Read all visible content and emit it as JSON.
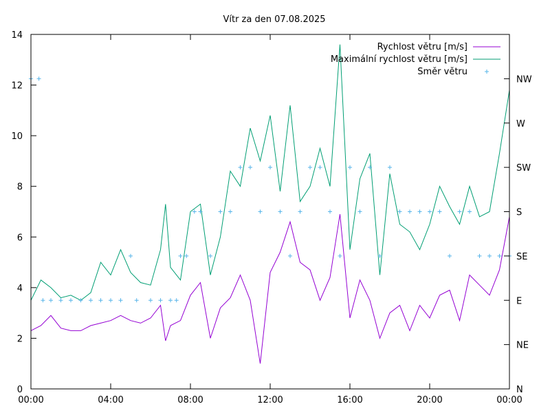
{
  "chart_data": {
    "type": "line",
    "title": "Vítr za den 07.08.2025",
    "x_ticks": [
      "00:00",
      "04:00",
      "08:00",
      "12:00",
      "16:00",
      "20:00",
      "00:00"
    ],
    "x_range_hours": [
      0,
      24
    ],
    "y_left": {
      "range": [
        0,
        14
      ],
      "ticks": [
        "0",
        "2",
        "4",
        "6",
        "8",
        "10",
        "12",
        "14"
      ]
    },
    "y_right": {
      "ticks": [
        "N",
        "NE",
        "E",
        "SE",
        "S",
        "SW",
        "W",
        "NW"
      ]
    },
    "grid": false,
    "legend_position": "top-right",
    "series": [
      {
        "name": "Rychlost větru [m/s]",
        "color": "#9400d3",
        "style": "line",
        "axis": "left",
        "points": [
          [
            0.0,
            2.3
          ],
          [
            0.5,
            2.5
          ],
          [
            1.0,
            2.9
          ],
          [
            1.5,
            2.4
          ],
          [
            2.0,
            2.3
          ],
          [
            2.5,
            2.3
          ],
          [
            3.0,
            2.5
          ],
          [
            3.5,
            2.6
          ],
          [
            4.0,
            2.7
          ],
          [
            4.5,
            2.9
          ],
          [
            5.0,
            2.7
          ],
          [
            5.5,
            2.6
          ],
          [
            6.0,
            2.8
          ],
          [
            6.5,
            3.3
          ],
          [
            6.75,
            1.9
          ],
          [
            7.0,
            2.5
          ],
          [
            7.5,
            2.7
          ],
          [
            8.0,
            3.7
          ],
          [
            8.5,
            4.2
          ],
          [
            9.0,
            2.0
          ],
          [
            9.5,
            3.2
          ],
          [
            10.0,
            3.6
          ],
          [
            10.5,
            4.5
          ],
          [
            11.0,
            3.5
          ],
          [
            11.5,
            1.0
          ],
          [
            12.0,
            4.6
          ],
          [
            12.5,
            5.4
          ],
          [
            13.0,
            6.6
          ],
          [
            13.5,
            5.0
          ],
          [
            14.0,
            4.7
          ],
          [
            14.5,
            3.5
          ],
          [
            15.0,
            4.4
          ],
          [
            15.5,
            6.9
          ],
          [
            16.0,
            2.8
          ],
          [
            16.5,
            4.3
          ],
          [
            17.0,
            3.5
          ],
          [
            17.5,
            2.0
          ],
          [
            18.0,
            3.0
          ],
          [
            18.5,
            3.3
          ],
          [
            19.0,
            2.3
          ],
          [
            19.5,
            3.3
          ],
          [
            20.0,
            2.8
          ],
          [
            20.5,
            3.7
          ],
          [
            21.0,
            3.9
          ],
          [
            21.5,
            2.7
          ],
          [
            22.0,
            4.5
          ],
          [
            22.5,
            4.1
          ],
          [
            23.0,
            3.7
          ],
          [
            23.5,
            4.7
          ],
          [
            24.0,
            6.8
          ]
        ]
      },
      {
        "name": "Maximální rychlost větru [m/s]",
        "color": "#009e73",
        "style": "line",
        "axis": "left",
        "points": [
          [
            0.0,
            3.5
          ],
          [
            0.5,
            4.3
          ],
          [
            1.0,
            4.0
          ],
          [
            1.5,
            3.6
          ],
          [
            2.0,
            3.7
          ],
          [
            2.5,
            3.5
          ],
          [
            3.0,
            3.8
          ],
          [
            3.5,
            5.0
          ],
          [
            4.0,
            4.5
          ],
          [
            4.5,
            5.5
          ],
          [
            5.0,
            4.6
          ],
          [
            5.5,
            4.2
          ],
          [
            6.0,
            4.1
          ],
          [
            6.5,
            5.5
          ],
          [
            6.75,
            7.3
          ],
          [
            7.0,
            4.8
          ],
          [
            7.5,
            4.3
          ],
          [
            8.0,
            7.0
          ],
          [
            8.5,
            7.3
          ],
          [
            9.0,
            4.5
          ],
          [
            9.5,
            6.0
          ],
          [
            10.0,
            8.6
          ],
          [
            10.5,
            8.0
          ],
          [
            11.0,
            10.3
          ],
          [
            11.5,
            9.0
          ],
          [
            12.0,
            10.8
          ],
          [
            12.5,
            7.8
          ],
          [
            13.0,
            11.2
          ],
          [
            13.5,
            7.4
          ],
          [
            14.0,
            8.0
          ],
          [
            14.5,
            9.5
          ],
          [
            15.0,
            8.0
          ],
          [
            15.5,
            13.6
          ],
          [
            16.0,
            5.5
          ],
          [
            16.5,
            8.3
          ],
          [
            17.0,
            9.3
          ],
          [
            17.5,
            4.5
          ],
          [
            18.0,
            8.5
          ],
          [
            18.5,
            6.5
          ],
          [
            19.0,
            6.2
          ],
          [
            19.5,
            5.5
          ],
          [
            20.0,
            6.5
          ],
          [
            20.5,
            8.0
          ],
          [
            21.0,
            7.2
          ],
          [
            21.5,
            6.5
          ],
          [
            22.0,
            8.0
          ],
          [
            22.5,
            6.8
          ],
          [
            23.0,
            7.0
          ],
          [
            23.5,
            9.3
          ],
          [
            24.0,
            11.8
          ]
        ]
      },
      {
        "name": "Směr větru",
        "color": "#56b4e9",
        "style": "points",
        "axis": "right",
        "points": [
          [
            0.0,
            "NW"
          ],
          [
            0.4,
            "NW"
          ],
          [
            0.6,
            "E"
          ],
          [
            1.0,
            "E"
          ],
          [
            1.5,
            "E"
          ],
          [
            2.0,
            "E"
          ],
          [
            2.5,
            "E"
          ],
          [
            3.0,
            "E"
          ],
          [
            3.5,
            "E"
          ],
          [
            4.0,
            "E"
          ],
          [
            4.5,
            "E"
          ],
          [
            5.0,
            "SE"
          ],
          [
            5.3,
            "E"
          ],
          [
            6.0,
            "E"
          ],
          [
            6.5,
            "E"
          ],
          [
            7.0,
            "E"
          ],
          [
            7.3,
            "E"
          ],
          [
            7.5,
            "SE"
          ],
          [
            7.8,
            "SE"
          ],
          [
            8.2,
            "S"
          ],
          [
            8.5,
            "S"
          ],
          [
            9.0,
            "SE"
          ],
          [
            9.5,
            "S"
          ],
          [
            10.0,
            "S"
          ],
          [
            10.5,
            "SW"
          ],
          [
            11.0,
            "SW"
          ],
          [
            11.5,
            "S"
          ],
          [
            12.0,
            "SW"
          ],
          [
            12.5,
            "S"
          ],
          [
            13.0,
            "SE"
          ],
          [
            13.5,
            "S"
          ],
          [
            14.0,
            "SW"
          ],
          [
            14.5,
            "SW"
          ],
          [
            15.0,
            "S"
          ],
          [
            15.5,
            "SE"
          ],
          [
            16.0,
            "SW"
          ],
          [
            16.5,
            "S"
          ],
          [
            17.0,
            "SW"
          ],
          [
            17.5,
            "SE"
          ],
          [
            18.0,
            "SW"
          ],
          [
            18.5,
            "S"
          ],
          [
            19.0,
            "S"
          ],
          [
            19.5,
            "S"
          ],
          [
            20.0,
            "S"
          ],
          [
            20.5,
            "S"
          ],
          [
            21.0,
            "SE"
          ],
          [
            21.5,
            "S"
          ],
          [
            22.0,
            "S"
          ],
          [
            22.5,
            "SE"
          ],
          [
            23.0,
            "SE"
          ],
          [
            23.5,
            "SE"
          ],
          [
            24.0,
            "SE"
          ]
        ]
      }
    ]
  }
}
